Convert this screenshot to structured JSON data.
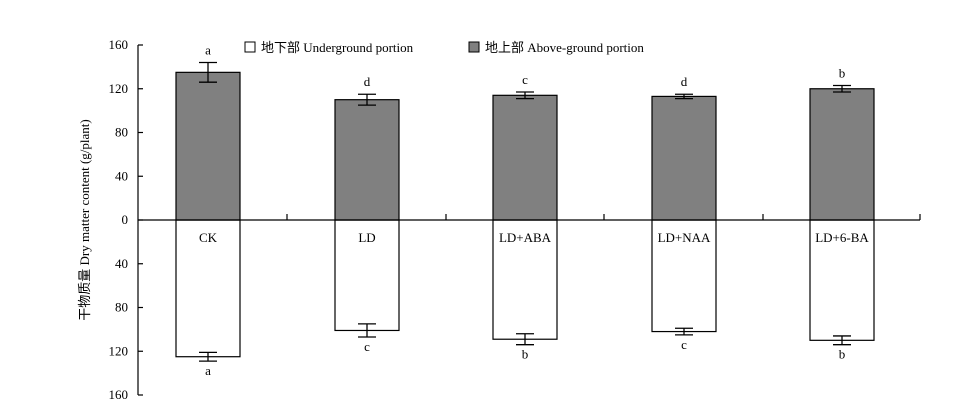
{
  "chart_data": {
    "type": "bar",
    "categories": [
      "CK",
      "LD",
      "LD+ABA",
      "LD+NAA",
      "LD+6-BA"
    ],
    "ylabel": "干物质量 Dry matter content (g/plant)",
    "yticks": [
      "160",
      "120",
      "80",
      "40",
      "0",
      "40",
      "80",
      "120",
      "160"
    ],
    "ylim_above": [
      0,
      160
    ],
    "ylim_below": [
      0,
      160
    ],
    "legend_position": "top",
    "series": [
      {
        "name": "地下部 Underground portion",
        "direction": "down",
        "color": "#ffffff",
        "values": [
          125,
          101,
          109,
          102,
          110
        ],
        "errors": [
          4,
          6,
          5,
          3,
          4
        ],
        "significance": [
          "a",
          "c",
          "b",
          "c",
          "b"
        ]
      },
      {
        "name": "地上部 Above-ground portion",
        "direction": "up",
        "color": "#808080",
        "values": [
          135,
          110,
          114,
          113,
          120
        ],
        "errors": [
          9,
          5,
          3,
          2,
          3
        ],
        "significance": [
          "a",
          "d",
          "c",
          "d",
          "b"
        ]
      }
    ]
  }
}
